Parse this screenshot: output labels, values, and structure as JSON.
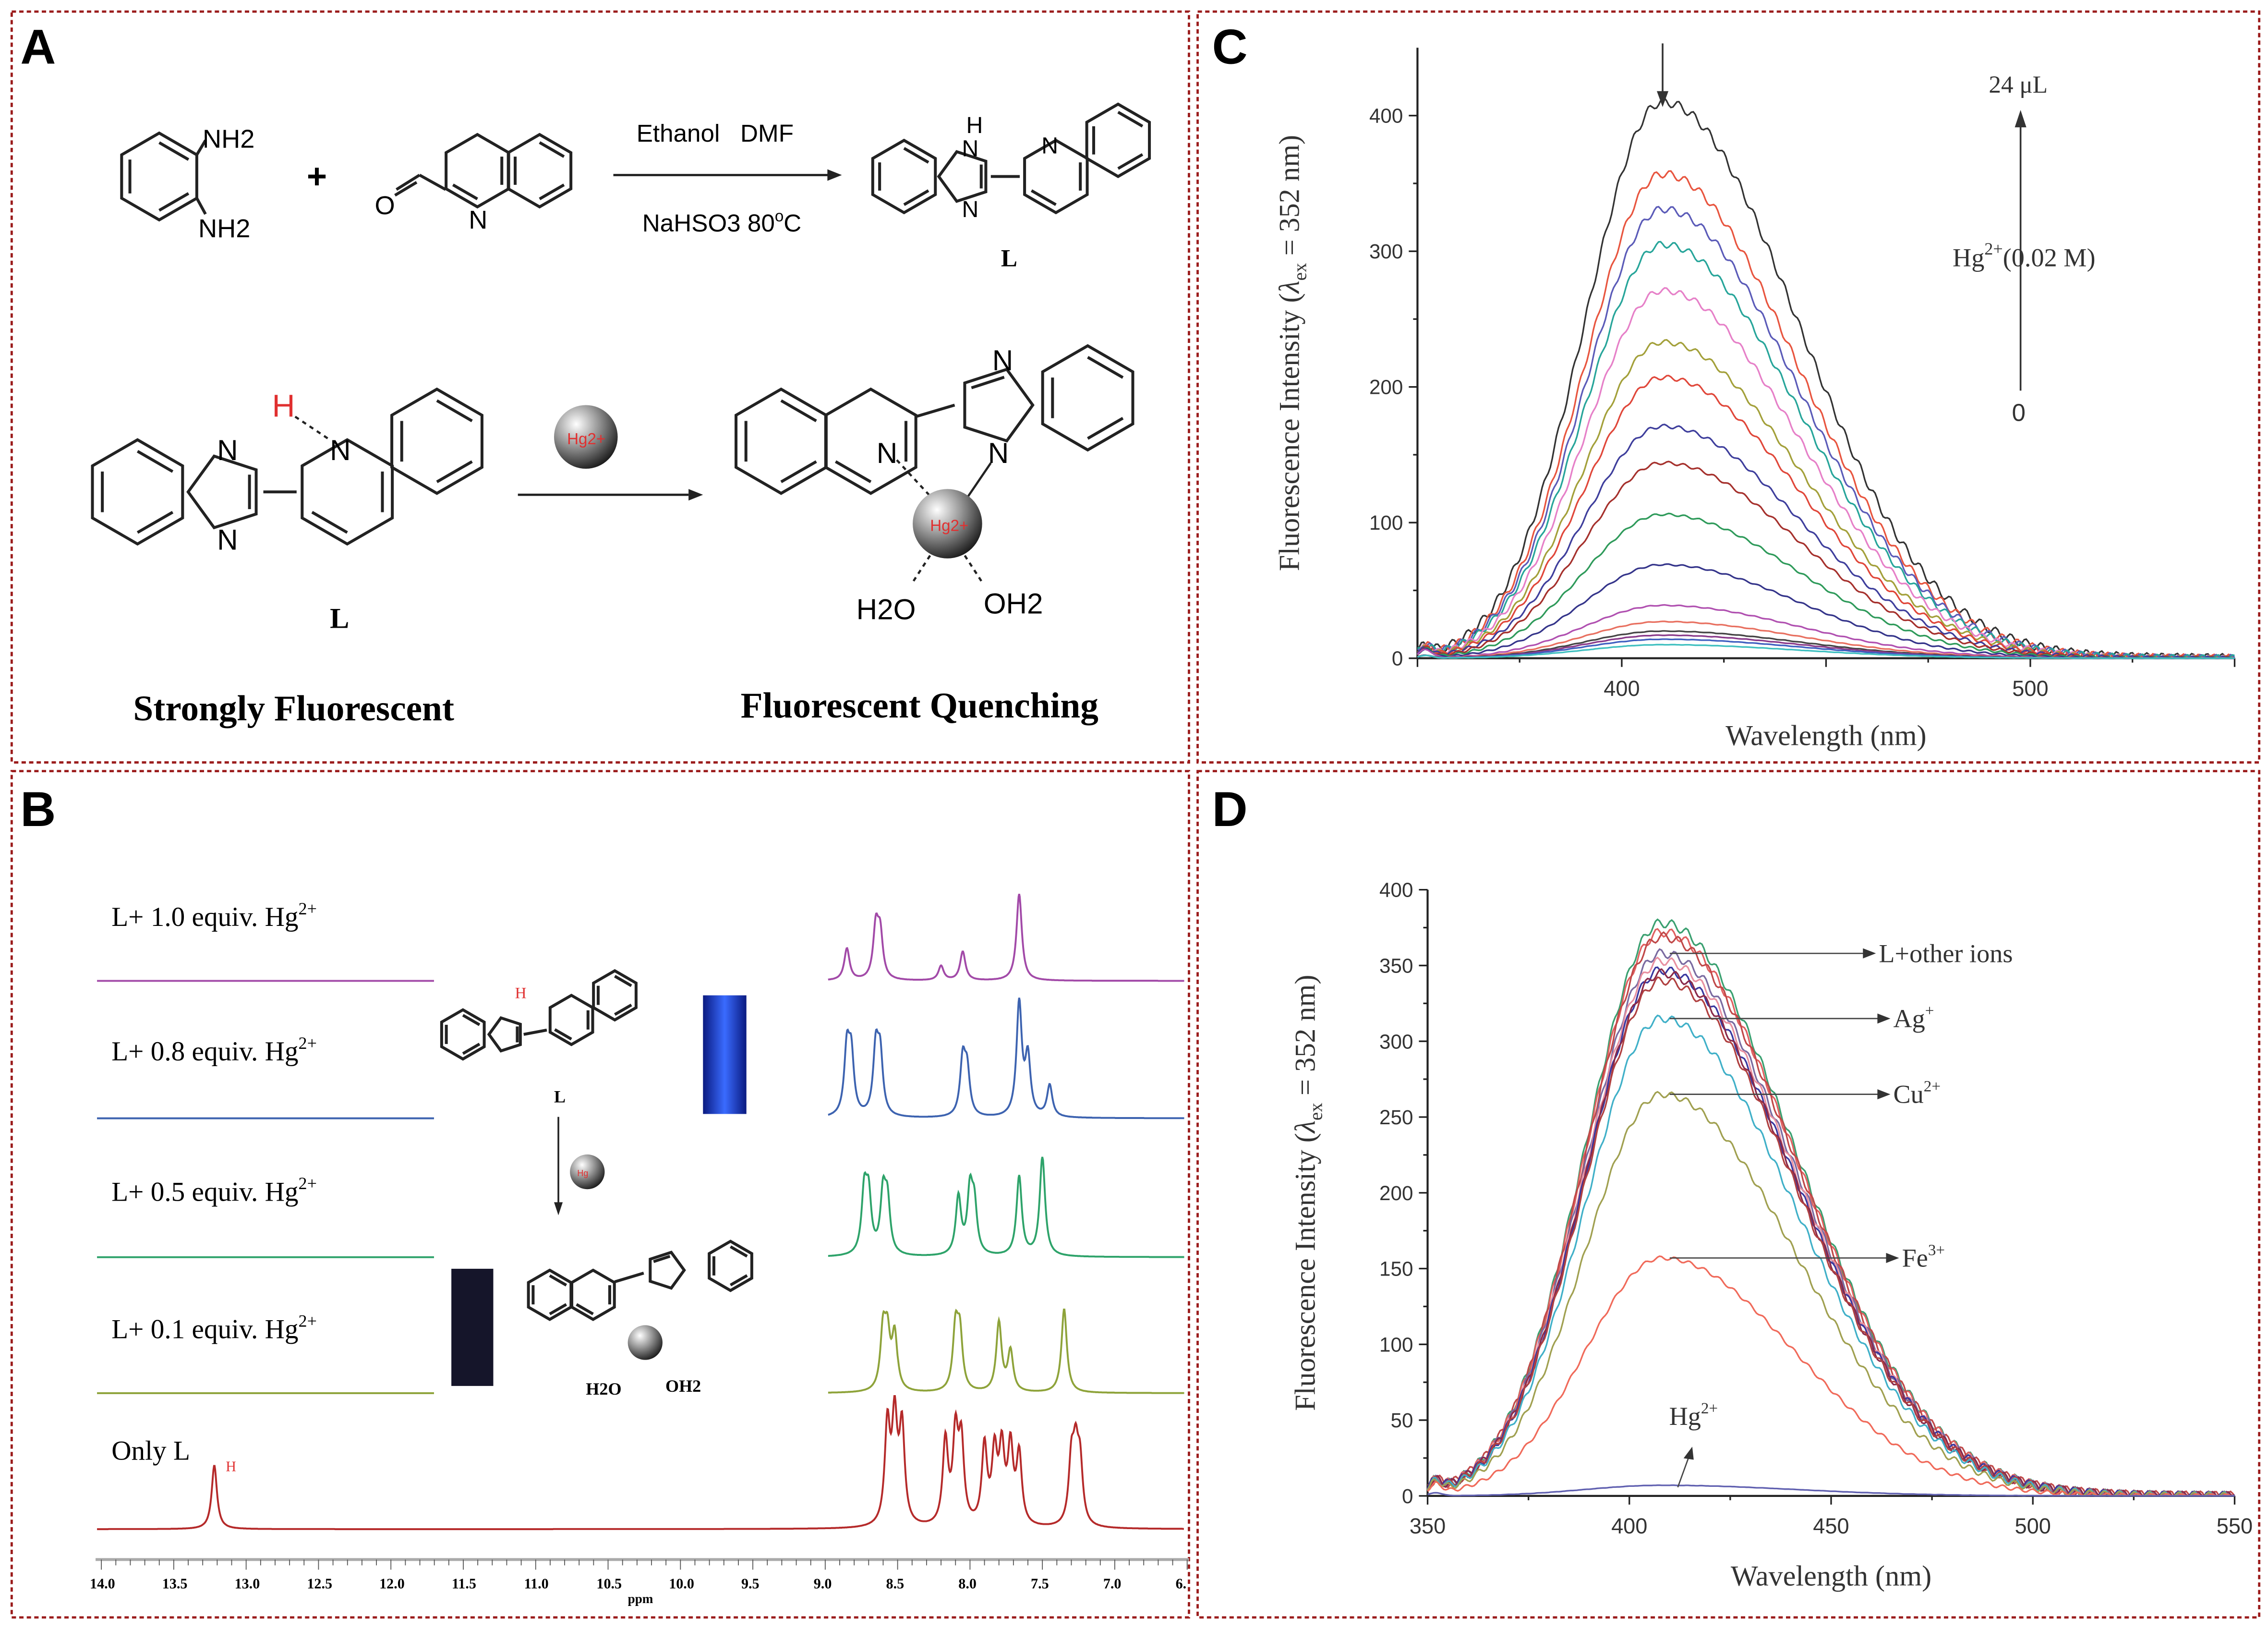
{
  "panels": {
    "A": {
      "letter": "A",
      "reactant1_nh2_top": "NH2",
      "reactant1_nh2_bottom": "NH2",
      "plus": "+",
      "aldehyde_o": "O",
      "aldehyde_n": "N",
      "conditions_top": "Ethanol   DMF",
      "conditions_bottom": "NaHSO3  80",
      "conditions_deg": "o",
      "conditions_c": "C",
      "product_nh": "H",
      "product_n1": "N",
      "product_n2": "N",
      "product_n3": "N",
      "product_label": "L",
      "ligand_h": "H",
      "ligand_n1": "N",
      "ligand_n2": "N",
      "ligand_n3": "N",
      "ligand_label": "L",
      "hg_ball": "Hg2+",
      "complex_n1": "N",
      "complex_n2": "N",
      "complex_n3": "N",
      "complex_hg": "Hg2+",
      "water_left": "H2O",
      "water_right": "OH2",
      "caption_left": "Strongly Fluorescent",
      "caption_right": "Fluorescent Quenching"
    },
    "B": {
      "letter": "B",
      "ligand_label": "L",
      "ligand_h": "H",
      "hg_ball": "Hg",
      "water_left": "H2O",
      "water_right": "OH2",
      "only_l_h": "H"
    },
    "C": {
      "letter": "C"
    },
    "D": {
      "letter": "D"
    }
  },
  "colors": {
    "border": "#9b1c1c",
    "nh_highlight": "#e03030",
    "vial_fluorescent": "#2a4dff",
    "vial_quenched": "#15152a"
  },
  "chart_data": [
    {
      "panel": "B",
      "type": "line",
      "xlabel": "ppm",
      "xlim": [
        14.0,
        6.5
      ],
      "x_ticks": [
        "14.0",
        "13.5",
        "13.0",
        "12.5",
        "12.0",
        "11.5",
        "11.0",
        "10.5",
        "10.0",
        "9.5",
        "9.0",
        "8.5",
        "8.0",
        "7.5",
        "7.0",
        "6."
      ],
      "series": [
        {
          "name": "L+ 1.0 equiv. Hg",
          "sup": "2+",
          "color": "#a24aa8",
          "peaks_ppm": [
            8.85,
            8.65,
            8.62,
            8.2,
            8.05,
            7.66
          ],
          "heights": [
            22,
            35,
            30,
            10,
            20,
            60
          ]
        },
        {
          "name": "L+ 0.8 equiv. Hg",
          "sup": "2+",
          "color": "#3d63b0",
          "peaks_ppm": [
            8.85,
            8.82,
            8.65,
            8.62,
            8.05,
            8.02,
            7.66,
            7.6,
            7.45
          ],
          "heights": [
            45,
            40,
            45,
            40,
            38,
            30,
            78,
            40,
            22
          ]
        },
        {
          "name": "L+ 0.5 equiv. Hg",
          "sup": "2+",
          "color": "#2ea36a",
          "peaks_ppm": [
            8.73,
            8.7,
            8.6,
            8.57,
            8.08,
            8.0,
            7.97,
            7.66,
            7.5
          ],
          "heights": [
            42,
            38,
            40,
            35,
            40,
            42,
            32,
            55,
            68
          ]
        },
        {
          "name": "L+ 0.1 equiv. Hg",
          "sup": "2+",
          "color": "#8ea33a",
          "peaks_ppm": [
            8.6,
            8.57,
            8.52,
            8.1,
            8.07,
            7.8,
            7.72,
            7.35
          ],
          "heights": [
            40,
            35,
            38,
            42,
            38,
            48,
            28,
            58
          ]
        },
        {
          "name": "Only L",
          "color": "#b52a2a",
          "peaks_ppm": [
            13.22,
            8.57,
            8.52,
            8.47,
            8.17,
            8.1,
            8.06,
            7.9,
            7.83,
            7.78,
            7.72,
            7.66,
            7.3,
            7.27,
            7.24
          ],
          "heights": [
            44,
            68,
            70,
            66,
            58,
            60,
            55,
            54,
            48,
            50,
            52,
            48,
            42,
            44,
            40
          ]
        }
      ]
    },
    {
      "panel": "C",
      "type": "line",
      "xlabel": "Wavelength (nm)",
      "ylabel_main": "Fluorescence Intensity (",
      "ylabel_lambda": "λ",
      "ylabel_sub": "ex",
      "ylabel_tail": " = 352 nm)",
      "xlim": [
        350,
        550
      ],
      "ylim": [
        0,
        450
      ],
      "x_ticks": [
        400,
        500
      ],
      "y_ticks": [
        0,
        100,
        200,
        300,
        400
      ],
      "annotations": {
        "top": "24 μL",
        "species": "Hg",
        "species_sup": "2+",
        "conc": "(0.02 M)",
        "bottom": "0"
      },
      "peak_wavelength": 410,
      "series": [
        {
          "peak": 410,
          "color": "#333333"
        },
        {
          "peak": 357,
          "color": "#e8553f"
        },
        {
          "peak": 331,
          "color": "#5b5bb8"
        },
        {
          "peak": 305,
          "color": "#27a59a"
        },
        {
          "peak": 271,
          "color": "#e680c8"
        },
        {
          "peak": 233,
          "color": "#a3a03a"
        },
        {
          "peak": 207,
          "color": "#e0473a"
        },
        {
          "peak": 171,
          "color": "#3e3e9c"
        },
        {
          "peak": 144,
          "color": "#a5302c"
        },
        {
          "peak": 106,
          "color": "#2e9a5a"
        },
        {
          "peak": 69,
          "color": "#34348a"
        },
        {
          "peak": 39,
          "color": "#b050b0"
        },
        {
          "peak": 27,
          "color": "#e87060"
        },
        {
          "peak": 20,
          "color": "#444444"
        },
        {
          "peak": 17,
          "color": "#8a3a8a"
        },
        {
          "peak": 14,
          "color": "#3f5fc0"
        },
        {
          "peak": 10,
          "color": "#40c0c0"
        }
      ]
    },
    {
      "panel": "D",
      "type": "line",
      "xlabel": "Wavelength (nm)",
      "ylabel_main": "Fluorescence Intensity (",
      "ylabel_lambda": "λ",
      "ylabel_sub": "ex",
      "ylabel_tail": " = 352 nm)",
      "xlim": [
        350,
        550
      ],
      "ylim": [
        0,
        400
      ],
      "x_ticks": [
        350,
        400,
        450,
        500,
        550
      ],
      "y_ticks": [
        0,
        50,
        100,
        150,
        200,
        250,
        300,
        350,
        400
      ],
      "peak_wavelength": 408,
      "labels": [
        {
          "text": "L+other ions",
          "sup": "",
          "value": 358
        },
        {
          "text": "Ag",
          "sup": "+",
          "value": 315
        },
        {
          "text": "Cu",
          "sup": "2+",
          "value": 265
        },
        {
          "text": "Fe",
          "sup": "3+",
          "value": 157
        },
        {
          "text": "Hg",
          "sup": "2+",
          "value": 7
        }
      ],
      "series": [
        {
          "peak": 378,
          "color": "#3aa070"
        },
        {
          "peak": 372,
          "color": "#e06060"
        },
        {
          "peak": 369,
          "color": "#c04848"
        },
        {
          "peak": 358,
          "color": "#7a6aa0"
        },
        {
          "peak": 353,
          "color": "#e890a0"
        },
        {
          "peak": 347,
          "color": "#3838a0"
        },
        {
          "peak": 345,
          "color": "#8a2a4a"
        },
        {
          "peak": 340,
          "color": "#b04040"
        },
        {
          "name": "Ag+",
          "peak": 315,
          "color": "#40b0c8"
        },
        {
          "name": "Cu2+",
          "peak": 265,
          "color": "#a0a050"
        },
        {
          "name": "Fe3+",
          "peak": 157,
          "color": "#f06a5a"
        },
        {
          "name": "Hg2+",
          "peak": 7,
          "color": "#6060b0"
        }
      ]
    }
  ]
}
